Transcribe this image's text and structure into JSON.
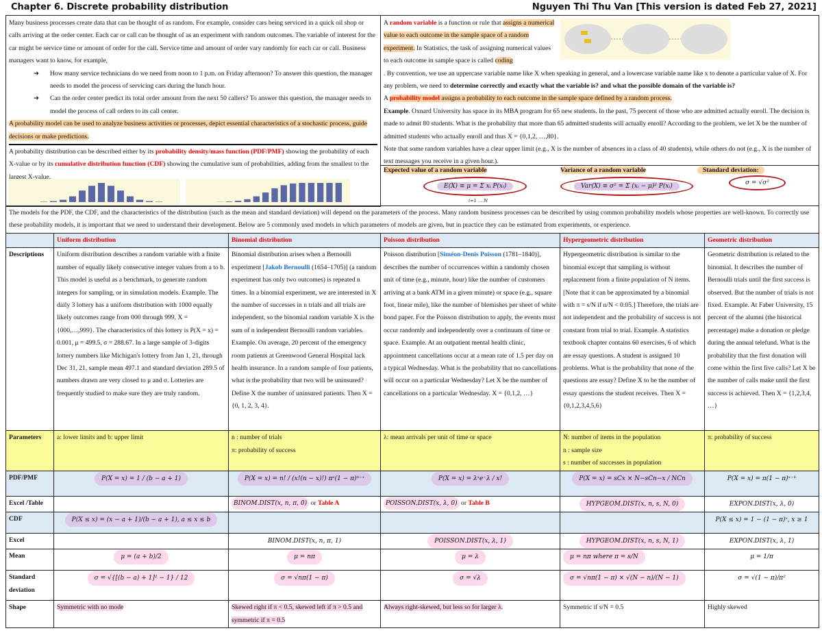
{
  "header": {
    "title": "Chapter 6. Discrete probability distribution",
    "author": "Nguyen Thi Thu Van [This version is dated Feb 27, 2021]"
  },
  "intro": {
    "p1": "Many business processes create data that can be thought of as random. For example, consider cars being serviced in a quick oil shop or calls arriving at the order center. Each car or call can be thought of as an experiment with random outcomes. The variable of interest for the car might be service time or amount of order for the call. Service time and amount of order vary randomly for each car or call. Business managers want to know, for example,",
    "q1": "How many service technicians do we need from noon to 1 p.m. on Friday afternoon? To answer this question, the manager needs to model the process of servicing cars during the lunch hour.",
    "q2": "Can the order center predict its total order amount from the next 50 callers? To answer this question, the manager needs to model the process of call orders to its call center.",
    "model": "A probability model can be used to analyze business activities or processes, depict essential characteristics of a stochastic process, guide decisions or make predictions.",
    "dist_a": "A probability distribution can be described either by its ",
    "pdf_term": "probability density/mass function (PDF/PMF)",
    "dist_b": " showing the probability of each X-value or by its ",
    "cdf_term": "cumulative distribution function (CDF)",
    "dist_c": " showing the cumulative sum of probabilities, adding from the smallest to the largest X-value."
  },
  "rv": {
    "a": "A ",
    "term": "random variable",
    "b": " is a function or rule that ",
    "hl": "assigns a numerical value to each outcome in the sample space of a random experiment.",
    "c": " In Statistics, the task of assigning numerical values to each outcome in sample space is called ",
    "coding": "coding",
    "d": ". By convention, we use an uppercase variable name like X when speaking in general, and a lowercase variable name like x to denote a particular value of X. For any problem, we need to ",
    "bold": "determine correctly and exactly what the variable is? and what the possible domain of the variable is?",
    "pm_a": "A ",
    "pm_term": "probability model",
    "pm_b": " assigns a probability to each outcome in the sample space defined by a random process.",
    "ex_label": "Example",
    "ex": ". Oxnard University has space in its MBA program for 65 new students. In the past, 75 percent of those who are admitted actually enroll. The decision is made to admit 80 students. What is the probability that more than 65 admitted students will actually enroll? According to the problem, we let X be the number of admitted students who actually enroll and thus X = {0,1,2, …,80}.",
    "note": "Note that some random variables have a clear upper limit (e.g., X is the number of absences in a class of 40 students), while others do not (e.g., X is the number of text messages you receive in a given hour.)."
  },
  "moments": {
    "ev_label": "Expected value of a random variable",
    "ev": "E(X) ≡ μ = Σ xᵢ P(xᵢ)",
    "var_label": "Variance of a random variable",
    "var": "Var(X) ≡ σ² = Σ (xᵢ − μ)² P(xᵢ)",
    "sd_label": "Standard deviation:",
    "sd": "σ = √σ²",
    "sum_limits": "i=1 … N"
  },
  "models_text": "The models for the PDF, the CDF, and the characteristics of the distribution (such as the mean and standard deviation) will depend on the parameters of the process. Many random business processes can be described by using common probability models whose properties are well-known. To correctly use these probability models, it is important that we need to understand their development. Below are 5 commonly used models in which parameters of models are given, but in practice they can be estimated from experiments, or experience.",
  "table": {
    "row_labels": [
      "Descriptions",
      "Parameters",
      "PDF/PMF",
      "Excel /Table",
      "CDF",
      "Excel",
      "Mean",
      "Standard deviation",
      "Shape"
    ],
    "columns": [
      {
        "name": "Uniform distribution",
        "desc": "Uniform distribution describes a random variable with a finite number of equally likely consecutive integer values from a to b. This model is useful as a benchmark, to generate random integers for sampling, or in simulation models. Example. The daily 3 lottery has a uniform distribution with 1000 equally likely outcomes range from 000 through 999, X = {000,…,999}. The characteristics of this lottery is P(X = x) = 0.001, μ = 499.5, σ = 288.67. In a large sample of 3-digits lottery numbers like Michigan's lottery from Jan 1, 21, through Dec 31, 21, sample mean 497.1 and standard deviation 289.5 of numbers drawn are very closed to μ and σ. Lotteries are frequently studied to make sure they are truly random.",
        "params": "a: lower limits and b: upper limit",
        "pdf": "P(X = x) = 1 / (b − a + 1)",
        "excel_table": "",
        "cdf": "P(X ≤ x) = (x − a + 1)/(b − a + 1), a ≤ x ≤ b",
        "excel": "",
        "mean": "μ = (a + b)/2",
        "sd": "σ = √{[(b − a) + 1]² − 1} / 12",
        "shape": "Symmetric with no mode"
      },
      {
        "name": "Binomial distribution",
        "desc_a": "Binomial distribution arises when a Bernoulli experiment [",
        "person": "Jakob Bernoulli",
        "desc_b": " (1654–1705)] (a random experiment has only two outcomes) is repeated n times. In a binomial experiment, we are interested in X the number of successes in n trials and all trials are independent, so the binomial random variable X is the sum of n independent Bernoulli random variables. Example. On average, 20 percent of the emergency room patients at Greenwood General Hospital lack health insurance. In a random sample of four patients, what is the probability that two will be uninsured? Define X the number of uninsured patients. Then X = {0, 1, 2, 3, 4}.",
        "params": [
          "n : number of trials",
          "π: probability of success"
        ],
        "pdf": "P(X = x) = n! / (x!(n − x)!) πˣ(1 − π)ⁿ⁻ˣ",
        "excel_table": "BINOM.DIST(x, n, π, 0)",
        "table_ref": "Table A",
        "cdf": "",
        "excel": "BINOM.DIST(x, n, π, 1)",
        "mean": "μ = nπ",
        "sd": "σ = √nπ(1 − π)",
        "shape": "Skewed right if π < 0.5, skewed left if π > 0.5 and symmetric if π = 0.5"
      },
      {
        "name": "Poisson distribution",
        "desc_a": "Poisson distribution [",
        "person": "Siméon-Denis Poisson",
        "desc_b": " (1781–1840)], describes the number of occurrences within a randomly chosen unit of time (e.g., minute, hour) like the number of customers arriving at a bank ATM in a given minute) or space (e.g., square foot, linear mile), like the number of blemishes per sheet of white bond paper. For the Poisson distribution to apply, the events must occur randomly and independently over a continuum of time or space. Example. At an outpatient mental health clinic, appointment cancellations occur at a mean rate of 1.5 per day on a typical Wednesday. What is the probability that no cancellations will occur on a particular Wednesday? Let X be the number of cancellations on a particular Wednesday. X = {0,1,2, …}",
        "params": "λ: mean arrivals per unit of time or space",
        "pdf": "P(X = x) = λˣe⁻λ / x!",
        "excel_table": "POISSON.DIST(x, λ, 0)",
        "table_ref": "Table B",
        "cdf": "",
        "excel": "POISSON.DIST(x, λ, 1)",
        "mean": "μ = λ",
        "sd": "σ = √λ",
        "shape": "Always right-skewed, but less so for larger λ."
      },
      {
        "name": "Hypergeometric distribution",
        "desc": "Hypergeometric distribution is similar to the binomial except that sampling is without replacement from a finite population of N items. [Note that it can be approximated by a binomial with π = s/N if n/N < 0.05.] Therefore, the trials are not independent and the probability of success is not constant from trial to trial. Example. A statistics textbook chapter contains 60 exercises, 6 of which are essay questions. A student is assigned 10 problems. What is the probability that none of the questions are essay? Define X to be the number of essay questions the student receives. Then X = {0,1,2,3,4,5,6}",
        "params": [
          "N: number of items in the population",
          "n : sample size",
          "s : number of successes in population"
        ],
        "pdf": "P(X = x) = sCx × N−sCn−x / NCn",
        "excel_table": "HYPGEOM.DIST(x, n, s, N, 0)",
        "cdf": "",
        "excel": "HYPGEOM.DIST(x, n, s, N, 1)",
        "mean": "μ = nπ where π = s/N",
        "sd": "σ = √nπ(1 − π) × √(N − n)/(N − 1)",
        "shape": "Symmetric if s/N = 0.5"
      },
      {
        "name": "Geometric distribution",
        "desc": "Geometric distribution is related to the binomial. It describes the number of Bernoulli trials until the first success is observed. But the number of trials is not fixed. Example. At Faber University, 15 percent of the alumni (the historical percentage) make a donation or pledge during the annual telefund. What is the probability that the first donation will come within the first five calls? Let X be the number of calls make until the first success is achieved. Then X = {1,2,3,4, …}",
        "params": "π: probability of success",
        "pdf": "P(X = x) = π(1 − π)ˣ⁻¹",
        "excel_table": "EXPON.DIST(x, λ, 0)",
        "cdf": "P(X ≤ x) = 1 − (1 − π)ˣ, x ≥ 1",
        "excel": "EXPON.DIST(x, λ, 1)",
        "mean": "μ = 1/π",
        "sd": "σ = √(1 − π)/π²",
        "shape": "Highly skewed"
      }
    ]
  },
  "colors": {
    "accent_red": "#e00000",
    "link_blue": "#1a6fd0",
    "highlight_orange": "#fbd3a4",
    "highlight_pink": "#f9d3ea",
    "formula_purple": "#dcc8e8",
    "header_blue": "#dce9f5",
    "param_yellow": "#fbfb9a"
  }
}
